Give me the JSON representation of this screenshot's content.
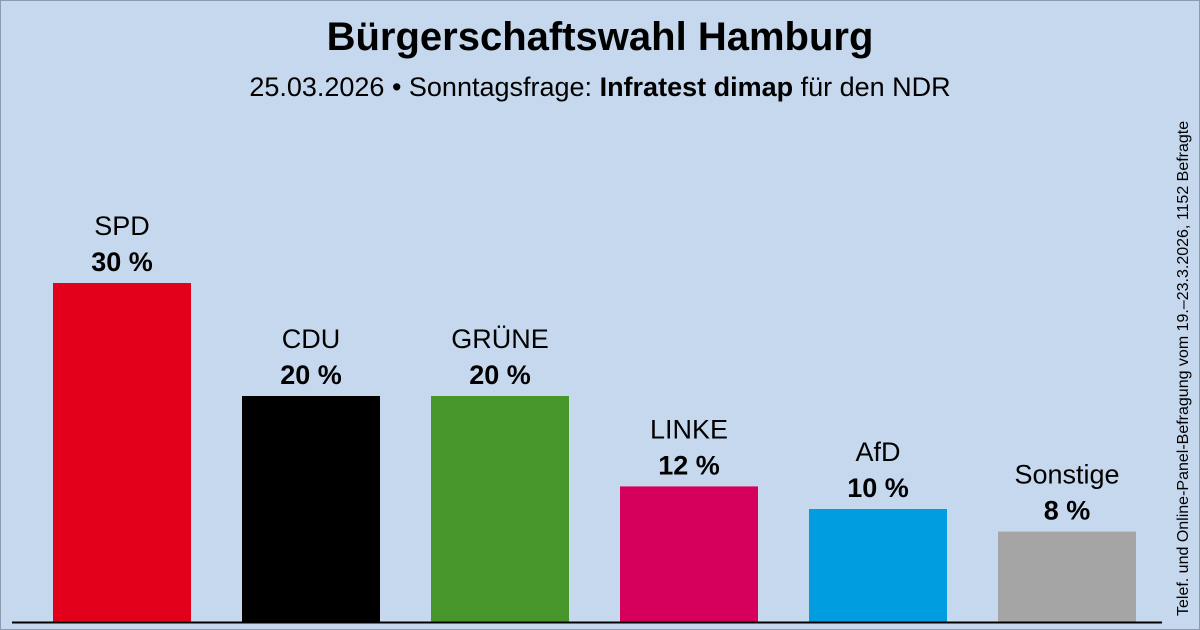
{
  "header": {
    "title": "Bürgerschaftswahl Hamburg",
    "subtitle_prefix": "25.03.2026 • Sonntagsfrage:",
    "institute": "Infratest dimap",
    "subtitle_suffix": "für den NDR"
  },
  "source_note": "Telef. und Online-Panel-Befragung vom 19.–23.3.2026, 1152 Befragte",
  "colors": {
    "background": "#c6d8ee",
    "baseline": "#000000"
  },
  "chart_data": {
    "type": "bar",
    "categories": [
      "SPD",
      "CDU",
      "GRÜNE",
      "LINKE",
      "AfD",
      "Sonstige"
    ],
    "values": [
      30,
      20,
      20,
      12,
      10,
      8
    ],
    "value_labels": [
      "30 %",
      "20 %",
      "20 %",
      "12 %",
      "10 %",
      "8 %"
    ],
    "colors": [
      "#e2001a",
      "#000000",
      "#46962b",
      "#d6005c",
      "#009ee0",
      "#a5a5a5"
    ],
    "ylim": [
      0,
      30
    ],
    "grid": false,
    "legend": "none"
  }
}
